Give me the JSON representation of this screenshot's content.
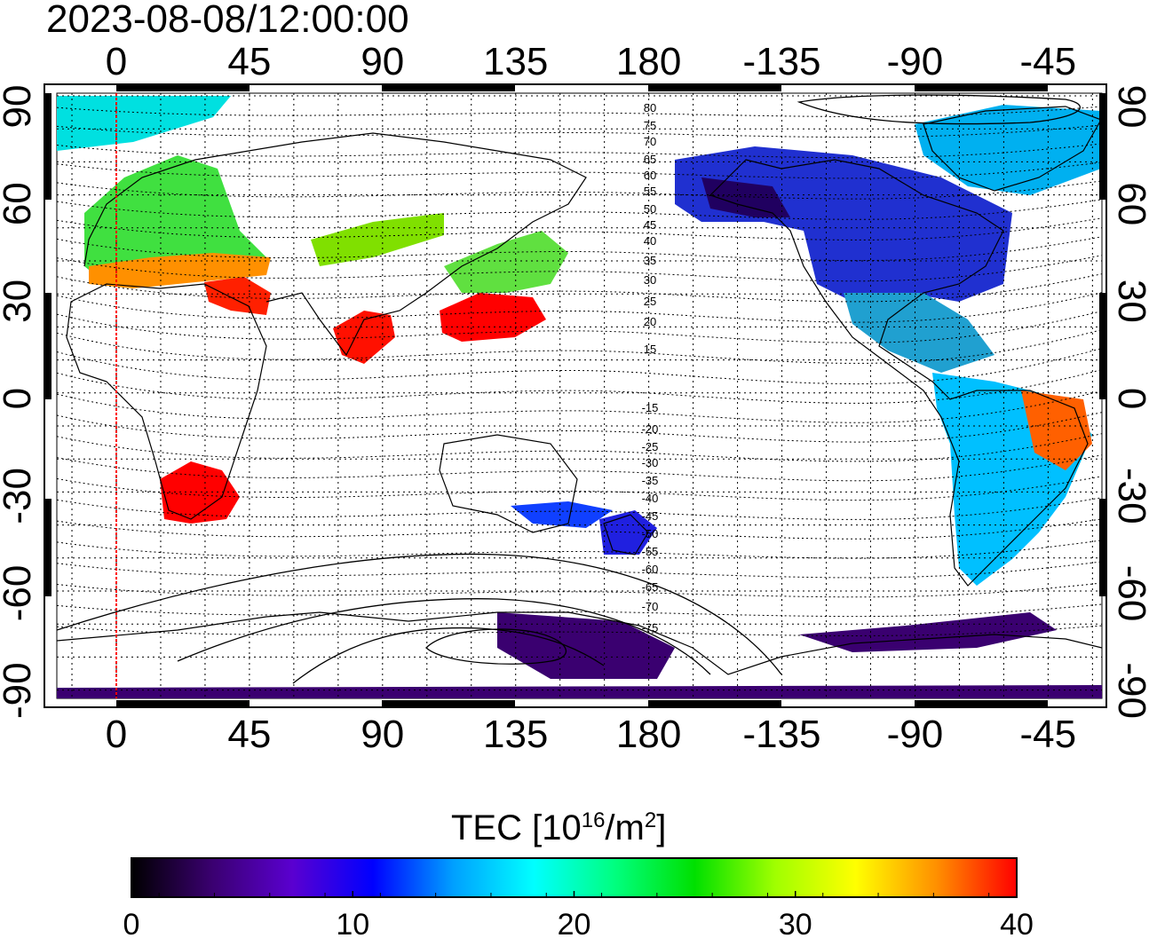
{
  "timestamp": "2023-08-08/12:00:00",
  "colorbar": {
    "title": "TEC  [10",
    "title_sup": "16",
    "title_mid": "/m",
    "title_sup2": "2",
    "title_end": "]",
    "ticks": [
      "0",
      "10",
      "20",
      "30",
      "40"
    ],
    "range": [
      0,
      40
    ],
    "colors": [
      "#000000",
      "#3a0070",
      "#5a00d0",
      "#0000ff",
      "#00a0ff",
      "#00ffff",
      "#00ff80",
      "#00e000",
      "#a0ff00",
      "#ffff00",
      "#ff9000",
      "#ff0000"
    ]
  },
  "axes": {
    "x_top": [
      "0",
      "45",
      "90",
      "135",
      "180",
      "-135",
      "-90",
      "-45"
    ],
    "x_bottom": [
      "0",
      "45",
      "90",
      "135",
      "180",
      "-135",
      "-90",
      "-45"
    ],
    "y_left": [
      "90",
      "60",
      "30",
      "0",
      "-30",
      "-60",
      "-90"
    ],
    "y_right": [
      "90",
      "60",
      "30",
      "0",
      "-30",
      "-60",
      "-90"
    ]
  },
  "contours": {
    "labels": [
      "80",
      "75",
      "70",
      "65",
      "60",
      "55",
      "50",
      "45",
      "40",
      "35",
      "30",
      "25",
      "20",
      "15",
      "-15",
      "-20",
      "-25",
      "-30",
      "-35",
      "-40",
      "-45",
      "-50",
      "-55",
      "-60",
      "-65",
      "-70",
      "-75"
    ]
  },
  "map": {
    "terminator_color": "#ff0000",
    "regions": [
      {
        "name": "north-atlantic-arctic",
        "color": "#00e0e0"
      },
      {
        "name": "europe",
        "color": "#40e040"
      },
      {
        "name": "mediterranean",
        "color": "#ff9000"
      },
      {
        "name": "north-africa",
        "color": "#ff2000"
      },
      {
        "name": "southern-africa",
        "color": "#ff0000"
      },
      {
        "name": "central-asia",
        "color": "#80e000"
      },
      {
        "name": "india",
        "color": "#ff1000"
      },
      {
        "name": "east-asia",
        "color": "#ff0000"
      },
      {
        "name": "japan",
        "color": "#60e040"
      },
      {
        "name": "australia",
        "color": "#1040ff"
      },
      {
        "name": "new-zealand",
        "color": "#2020e0"
      },
      {
        "name": "north-america",
        "color": "#2030d0"
      },
      {
        "name": "alaska",
        "color": "#200060"
      },
      {
        "name": "greenland",
        "color": "#00b0f0"
      },
      {
        "name": "central-america",
        "color": "#20a0d0"
      },
      {
        "name": "south-america",
        "color": "#00c0ff"
      },
      {
        "name": "brazil",
        "color": "#ff6000"
      },
      {
        "name": "antarctica",
        "color": "#3a0070"
      }
    ]
  }
}
